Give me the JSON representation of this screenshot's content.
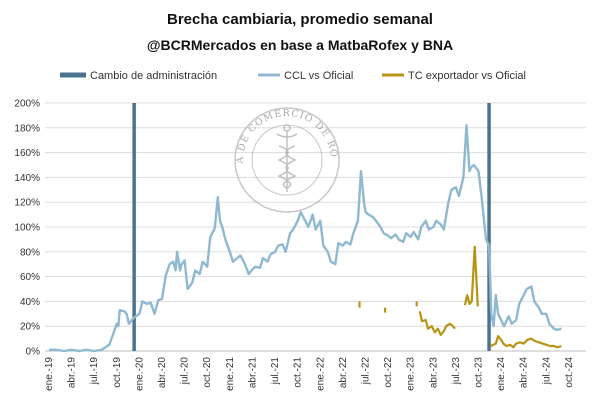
{
  "chart_data": {
    "type": "line",
    "title": "Brecha cambiaria, promedio semanal",
    "subtitle": "@BCRMercados en base a MatbaRofex y BNA",
    "ylim": [
      0,
      2.0
    ],
    "y_ticks": [
      "0%",
      "20%",
      "40%",
      "60%",
      "80%",
      "100%",
      "120%",
      "140%",
      "160%",
      "180%",
      "200%"
    ],
    "x_ticks": [
      "ene.-19",
      "abr.-19",
      "jul.-19",
      "oct.-19",
      "ene.-20",
      "abr.-20",
      "jul.-20",
      "oct.-20",
      "ene.-21",
      "abr.-21",
      "jul.-21",
      "oct.-21",
      "ene.-22",
      "abr.-22",
      "jul.-22",
      "oct.-22",
      "ene.-23",
      "abr.-23",
      "jul.-23",
      "oct.-23",
      "ene.-24",
      "abr.-24",
      "jul.-24",
      "oct.-24"
    ],
    "legend": [
      {
        "label": "Cambio de administración",
        "color": "#4a7391"
      },
      {
        "label": "CCL vs Oficial",
        "color": "#8fb9d1"
      },
      {
        "label": "TC exportador vs Oficial",
        "color": "#b79413"
      }
    ],
    "grid": "horizontal",
    "legend_position": "top",
    "vertical_markers": {
      "name": "Cambio de administración",
      "x": [
        11.3,
        58.4
      ]
    },
    "series": [
      {
        "name": "CCL vs Oficial",
        "color": "#8fb9d1",
        "points": [
          [
            0,
            0.01
          ],
          [
            1,
            0.01
          ],
          [
            2,
            0.0
          ],
          [
            3,
            0.01
          ],
          [
            4,
            0.0
          ],
          [
            5,
            0.01
          ],
          [
            6,
            0.0
          ],
          [
            7,
            0.01
          ],
          [
            8,
            0.05
          ],
          [
            8.6,
            0.15
          ],
          [
            9,
            0.22
          ],
          [
            9.2,
            0.2
          ],
          [
            9.4,
            0.33
          ],
          [
            10,
            0.32
          ],
          [
            10.3,
            0.3
          ],
          [
            10.6,
            0.22
          ],
          [
            11,
            0.25
          ],
          [
            11.3,
            0.27
          ],
          [
            12,
            0.3
          ],
          [
            12.4,
            0.4
          ],
          [
            13,
            0.38
          ],
          [
            13.5,
            0.39
          ],
          [
            14,
            0.3
          ],
          [
            14.5,
            0.41
          ],
          [
            15,
            0.42
          ],
          [
            15.5,
            0.61
          ],
          [
            16,
            0.7
          ],
          [
            16.5,
            0.72
          ],
          [
            16.8,
            0.65
          ],
          [
            17,
            0.8
          ],
          [
            17.4,
            0.65
          ],
          [
            17.6,
            0.7
          ],
          [
            18,
            0.73
          ],
          [
            18.4,
            0.5
          ],
          [
            19,
            0.55
          ],
          [
            19.4,
            0.65
          ],
          [
            20,
            0.62
          ],
          [
            20.4,
            0.72
          ],
          [
            21,
            0.68
          ],
          [
            21.4,
            0.92
          ],
          [
            22,
            0.99
          ],
          [
            22.4,
            1.24
          ],
          [
            22.7,
            1.05
          ],
          [
            23,
            1.0
          ],
          [
            23.4,
            0.9
          ],
          [
            24,
            0.8
          ],
          [
            24.4,
            0.72
          ],
          [
            25,
            0.75
          ],
          [
            25.4,
            0.77
          ],
          [
            26,
            0.7
          ],
          [
            26.5,
            0.62
          ],
          [
            27,
            0.66
          ],
          [
            27.4,
            0.68
          ],
          [
            28,
            0.67
          ],
          [
            28.4,
            0.75
          ],
          [
            29,
            0.72
          ],
          [
            29.4,
            0.78
          ],
          [
            30,
            0.8
          ],
          [
            30.4,
            0.85
          ],
          [
            31,
            0.86
          ],
          [
            31.4,
            0.8
          ],
          [
            32,
            0.95
          ],
          [
            32.4,
            0.98
          ],
          [
            33,
            1.05
          ],
          [
            33.4,
            1.12
          ],
          [
            34,
            1.05
          ],
          [
            34.4,
            1.0
          ],
          [
            35,
            1.1
          ],
          [
            35.4,
            0.98
          ],
          [
            36,
            1.05
          ],
          [
            36.4,
            0.85
          ],
          [
            37,
            0.8
          ],
          [
            37.4,
            0.72
          ],
          [
            38,
            0.7
          ],
          [
            38.4,
            0.87
          ],
          [
            39,
            0.85
          ],
          [
            39.4,
            0.88
          ],
          [
            40,
            0.86
          ],
          [
            40.4,
            0.95
          ],
          [
            41,
            1.05
          ],
          [
            41.4,
            1.45
          ],
          [
            41.8,
            1.2
          ],
          [
            42,
            1.12
          ],
          [
            42.4,
            1.1
          ],
          [
            43,
            1.08
          ],
          [
            43.4,
            1.05
          ],
          [
            44,
            1.0
          ],
          [
            44.4,
            0.95
          ],
          [
            45,
            0.93
          ],
          [
            45.4,
            0.91
          ],
          [
            46,
            0.94
          ],
          [
            46.4,
            0.9
          ],
          [
            47,
            0.88
          ],
          [
            47.4,
            0.95
          ],
          [
            48,
            0.92
          ],
          [
            48.4,
            0.96
          ],
          [
            49,
            0.9
          ],
          [
            49.4,
            1.0
          ],
          [
            50,
            1.05
          ],
          [
            50.4,
            0.98
          ],
          [
            51,
            1.0
          ],
          [
            51.4,
            1.05
          ],
          [
            52,
            1.02
          ],
          [
            52.4,
            0.98
          ],
          [
            53,
            1.2
          ],
          [
            53.4,
            1.3
          ],
          [
            54,
            1.32
          ],
          [
            54.4,
            1.25
          ],
          [
            55,
            1.4
          ],
          [
            55.4,
            1.82
          ],
          [
            55.8,
            1.45
          ],
          [
            56,
            1.48
          ],
          [
            56.4,
            1.5
          ],
          [
            57,
            1.45
          ],
          [
            57.4,
            1.25
          ],
          [
            58,
            0.9
          ],
          [
            58.4,
            0.85
          ],
          [
            58.7,
            0.3
          ],
          [
            59,
            0.2
          ],
          [
            59.3,
            0.45
          ],
          [
            59.6,
            0.3
          ],
          [
            60,
            0.25
          ],
          [
            60.4,
            0.2
          ],
          [
            61,
            0.28
          ],
          [
            61.4,
            0.22
          ],
          [
            62,
            0.25
          ],
          [
            62.4,
            0.38
          ],
          [
            63,
            0.45
          ],
          [
            63.4,
            0.5
          ],
          [
            64,
            0.52
          ],
          [
            64.4,
            0.4
          ],
          [
            65,
            0.35
          ],
          [
            65.4,
            0.3
          ],
          [
            66,
            0.3
          ],
          [
            66.4,
            0.22
          ],
          [
            67,
            0.18
          ],
          [
            67.4,
            0.17
          ],
          [
            68,
            0.18
          ]
        ]
      },
      {
        "name": "TC exportador vs Oficial",
        "color": "#b79413",
        "segments": [
          [
            [
              41.2,
              0.35
            ],
            [
              41.2,
              0.4
            ]
          ],
          [
            [
              44.6,
              0.31
            ],
            [
              44.6,
              0.35
            ]
          ],
          [
            [
              48.8,
              0.36
            ],
            [
              48.8,
              0.4
            ]
          ],
          [
            [
              49.2,
              0.32
            ],
            [
              49.5,
              0.24
            ],
            [
              50,
              0.25
            ],
            [
              50.3,
              0.18
            ],
            [
              50.8,
              0.2
            ],
            [
              51.2,
              0.15
            ],
            [
              51.6,
              0.18
            ],
            [
              52,
              0.13
            ],
            [
              52.4,
              0.16
            ],
            [
              52.7,
              0.2
            ],
            [
              53.2,
              0.22
            ],
            [
              53.6,
              0.2
            ],
            [
              53.9,
              0.18
            ]
          ],
          [
            [
              55.2,
              0.37
            ],
            [
              55.5,
              0.45
            ],
            [
              55.8,
              0.38
            ],
            [
              56.1,
              0.4
            ],
            [
              56.5,
              0.84
            ],
            [
              56.9,
              0.36
            ]
          ],
          [
            [
              58.6,
              0.04
            ],
            [
              59.3,
              0.06
            ],
            [
              59.6,
              0.12
            ],
            [
              60,
              0.09
            ],
            [
              60.3,
              0.06
            ],
            [
              60.7,
              0.04
            ],
            [
              61.2,
              0.05
            ],
            [
              61.6,
              0.03
            ],
            [
              62,
              0.06
            ],
            [
              62.5,
              0.07
            ],
            [
              63,
              0.06
            ],
            [
              63.5,
              0.09
            ],
            [
              64,
              0.1
            ],
            [
              64.5,
              0.08
            ],
            [
              65,
              0.07
            ],
            [
              65.5,
              0.06
            ],
            [
              66,
              0.05
            ],
            [
              66.5,
              0.04
            ],
            [
              67,
              0.04
            ],
            [
              67.5,
              0.03
            ],
            [
              68,
              0.04
            ]
          ]
        ]
      }
    ]
  },
  "seal": {
    "text": "BOLSA DE COMERCIO DE ROSARIO"
  }
}
